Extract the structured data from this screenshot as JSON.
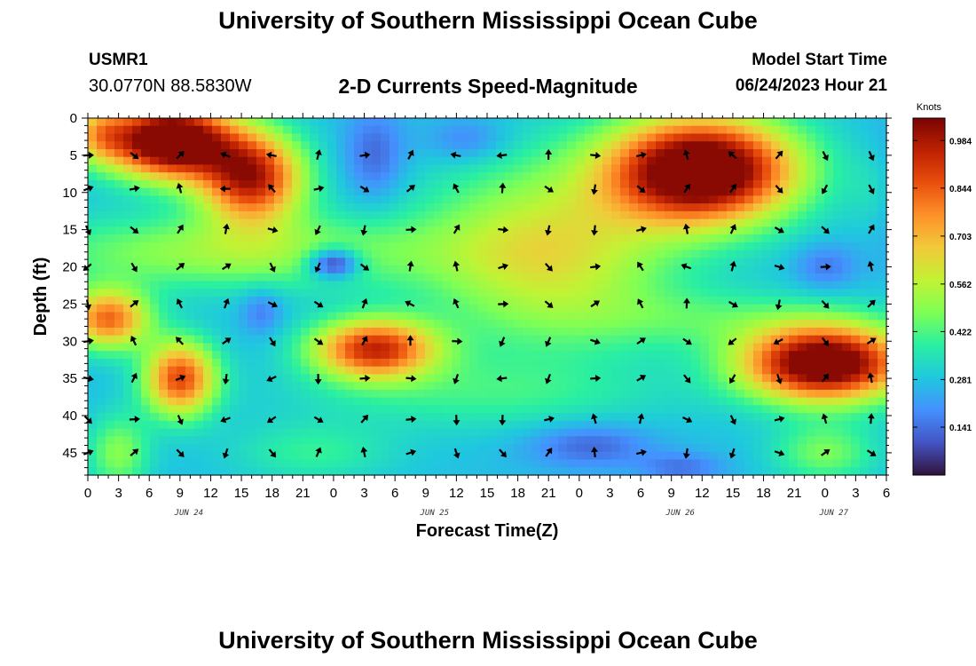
{
  "page": {
    "title": "University of Southern Mississippi Ocean Cube",
    "station": "USMR1",
    "coords": "30.0770N  88.5830W",
    "subtitle": "2-D Currents Speed-Magnitude",
    "model_start_label": "Model Start Time",
    "model_start_value": "06/24/2023 Hour 21",
    "footer_title": "University of Southern Mississippi Ocean Cube"
  },
  "chart_data": {
    "type": "heatmap",
    "title": "2-D Currents Speed-Magnitude",
    "xlabel": "Forecast Time(Z)",
    "ylabel": "Depth (ft)",
    "x_hours_range": [
      0,
      78
    ],
    "y_range": [
      0,
      48
    ],
    "x_tick_labels": [
      "0",
      "3",
      "6",
      "9",
      "12",
      "15",
      "18",
      "21",
      "0",
      "3",
      "6",
      "9",
      "12",
      "15",
      "18",
      "21",
      "0",
      "3",
      "6",
      "9",
      "12",
      "15",
      "18",
      "21",
      "0",
      "3",
      "6"
    ],
    "day_labels": [
      {
        "hour": 9,
        "label": "JUN 24"
      },
      {
        "hour": 33,
        "label": "JUN 25"
      },
      {
        "hour": 57,
        "label": "JUN 26"
      },
      {
        "hour": 72,
        "label": "JUN 27"
      }
    ],
    "y_ticks": [
      0,
      5,
      10,
      15,
      20,
      25,
      30,
      35,
      40,
      45
    ],
    "colorbar": {
      "unit": "Knots",
      "range": [
        0.0,
        1.05
      ],
      "ticks": [
        0.141,
        0.281,
        0.422,
        0.562,
        0.703,
        0.844,
        0.984
      ]
    },
    "colors": {
      "stops": [
        "#30123b",
        "#4454c4",
        "#4490fe",
        "#1fc8de",
        "#29efa2",
        "#7eff55",
        "#c1f334",
        "#f1ca3a",
        "#fe922a",
        "#ea4f0d",
        "#be2102",
        "#7a0403"
      ]
    },
    "speed_blobs": [
      {
        "x": 8,
        "y": 3,
        "sx": 6,
        "sy": 5,
        "a": 0.95
      },
      {
        "x": 16,
        "y": 8,
        "sx": 5,
        "sy": 6,
        "a": 0.7
      },
      {
        "x": 1,
        "y": 2,
        "sx": 3,
        "sy": 4,
        "a": 0.3
      },
      {
        "x": 2,
        "y": 27,
        "sx": 4,
        "sy": 4,
        "a": 0.55
      },
      {
        "x": 9,
        "y": 35,
        "sx": 3.5,
        "sy": 5,
        "a": 0.6
      },
      {
        "x": 28,
        "y": 31,
        "sx": 6,
        "sy": 4,
        "a": 0.65
      },
      {
        "x": 60,
        "y": 7,
        "sx": 9,
        "sy": 7,
        "a": 0.95
      },
      {
        "x": 72,
        "y": 33,
        "sx": 8,
        "sy": 5,
        "a": 0.9
      },
      {
        "x": 45,
        "y": 18,
        "sx": 12,
        "sy": 12,
        "a": 0.35
      },
      {
        "x": 14,
        "y": 18,
        "sx": 20,
        "sy": 5,
        "a": 0.25
      },
      {
        "x": 38,
        "y": 37,
        "sx": 18,
        "sy": 5,
        "a": 0.12
      },
      {
        "x": 3,
        "y": 45,
        "sx": 3,
        "sy": 5,
        "a": 0.22
      },
      {
        "x": 72,
        "y": 45,
        "sx": 5,
        "sy": 4,
        "a": 0.2
      },
      {
        "x": 62,
        "y": 27,
        "sx": 14,
        "sy": 4,
        "a": 0.12
      },
      {
        "x": 22,
        "y": 45,
        "sx": 8,
        "sy": 4,
        "a": 0.12
      },
      {
        "x": 77,
        "y": 10,
        "sx": 2.5,
        "sy": 6,
        "a": 0.12
      }
    ],
    "low_blobs": [
      {
        "x": 24,
        "y": 19.5,
        "sx": 2.5,
        "sy": 2,
        "a": 0.35
      },
      {
        "x": 28,
        "y": 5,
        "sx": 3,
        "sy": 6,
        "a": 0.15
      },
      {
        "x": 49,
        "y": 44,
        "sx": 6,
        "sy": 3,
        "a": 0.15
      },
      {
        "x": 58,
        "y": 47,
        "sx": 4,
        "sy": 2,
        "a": 0.12
      },
      {
        "x": 78,
        "y": 10,
        "sx": 3,
        "sy": 8,
        "a": 0.1
      },
      {
        "x": 17,
        "y": 26,
        "sx": 2,
        "sy": 3,
        "a": 0.12
      },
      {
        "x": 72,
        "y": 20,
        "sx": 3,
        "sy": 3,
        "a": 0.12
      },
      {
        "x": 37,
        "y": 3,
        "sx": 4,
        "sy": 3,
        "a": 0.12
      }
    ],
    "arrow_hours": [
      0,
      4.5,
      9,
      13.5,
      18,
      22.5,
      27,
      31.5,
      36,
      40.5,
      45,
      49.5,
      54,
      58.5,
      63,
      67.5,
      72,
      76.5
    ],
    "arrow_depths": [
      5,
      9.5,
      15,
      20,
      25,
      30,
      35,
      40.5,
      45
    ]
  }
}
